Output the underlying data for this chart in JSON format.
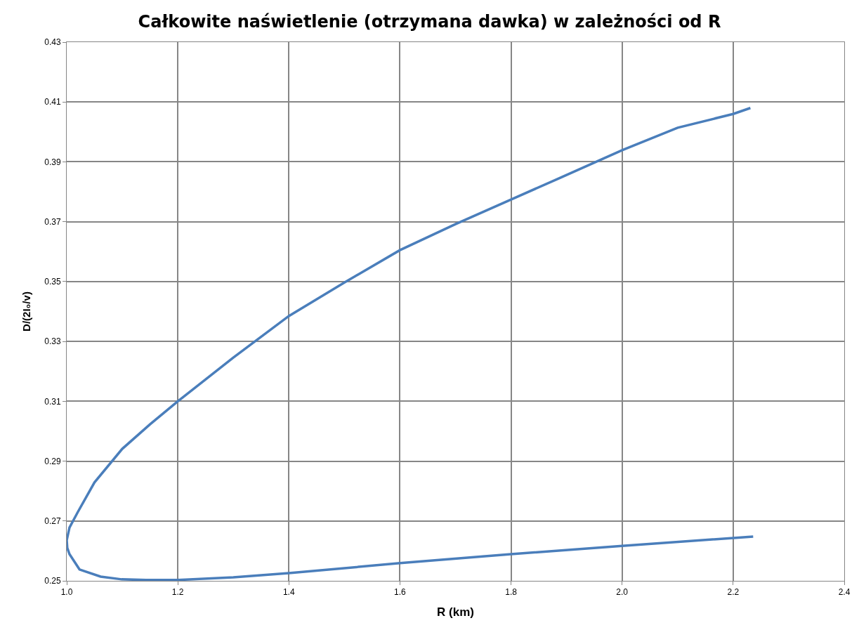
{
  "chart_data": {
    "type": "line",
    "title": "Całkowite naświetlenie (otrzymana dawka) w zależności od R",
    "xlabel": "R (km)",
    "ylabel": "D/(2I₀/v)",
    "series": [
      {
        "color": "#4a7ebb",
        "x": [
          2.231,
          2.2,
          2.1,
          2.0,
          1.9,
          1.8,
          1.7,
          1.6,
          1.5,
          1.4,
          1.3,
          1.2,
          1.15,
          1.1,
          1.05,
          1.02,
          1.005,
          1.0,
          1.001,
          1.005,
          1.023,
          1.061,
          1.099,
          1.143,
          1.2,
          1.3,
          1.4,
          1.6,
          1.8,
          2.0,
          2.236
        ],
        "values": [
          0.408,
          0.406,
          0.4014,
          0.3939,
          0.3856,
          0.3774,
          0.3692,
          0.3605,
          0.3497,
          0.3385,
          0.3246,
          0.31,
          0.3023,
          0.2941,
          0.2829,
          0.273,
          0.2678,
          0.2636,
          0.261,
          0.2589,
          0.2538,
          0.2514,
          0.2505,
          0.2503,
          0.2503,
          0.2512,
          0.2526,
          0.2559,
          0.2589,
          0.2617,
          0.2648
        ]
      }
    ],
    "xlim": [
      1.0,
      2.4
    ],
    "xticks": [
      {
        "value": 1.0,
        "label": "1.0"
      },
      {
        "value": 1.2,
        "label": "1.2"
      },
      {
        "value": 1.4,
        "label": "1.4"
      },
      {
        "value": 1.6,
        "label": "1.6"
      },
      {
        "value": 1.8,
        "label": "1.8"
      },
      {
        "value": 2.0,
        "label": "2.0"
      },
      {
        "value": 2.2,
        "label": "2.2"
      },
      {
        "value": 2.4,
        "label": "2.4"
      }
    ],
    "ylim": [
      0.25,
      0.43
    ],
    "yticks": [
      0.25,
      0.27,
      0.29,
      0.31,
      0.33,
      0.35,
      0.37,
      0.39,
      0.41,
      0.43
    ],
    "grid": true,
    "marker": "none",
    "line_style": "solid"
  }
}
